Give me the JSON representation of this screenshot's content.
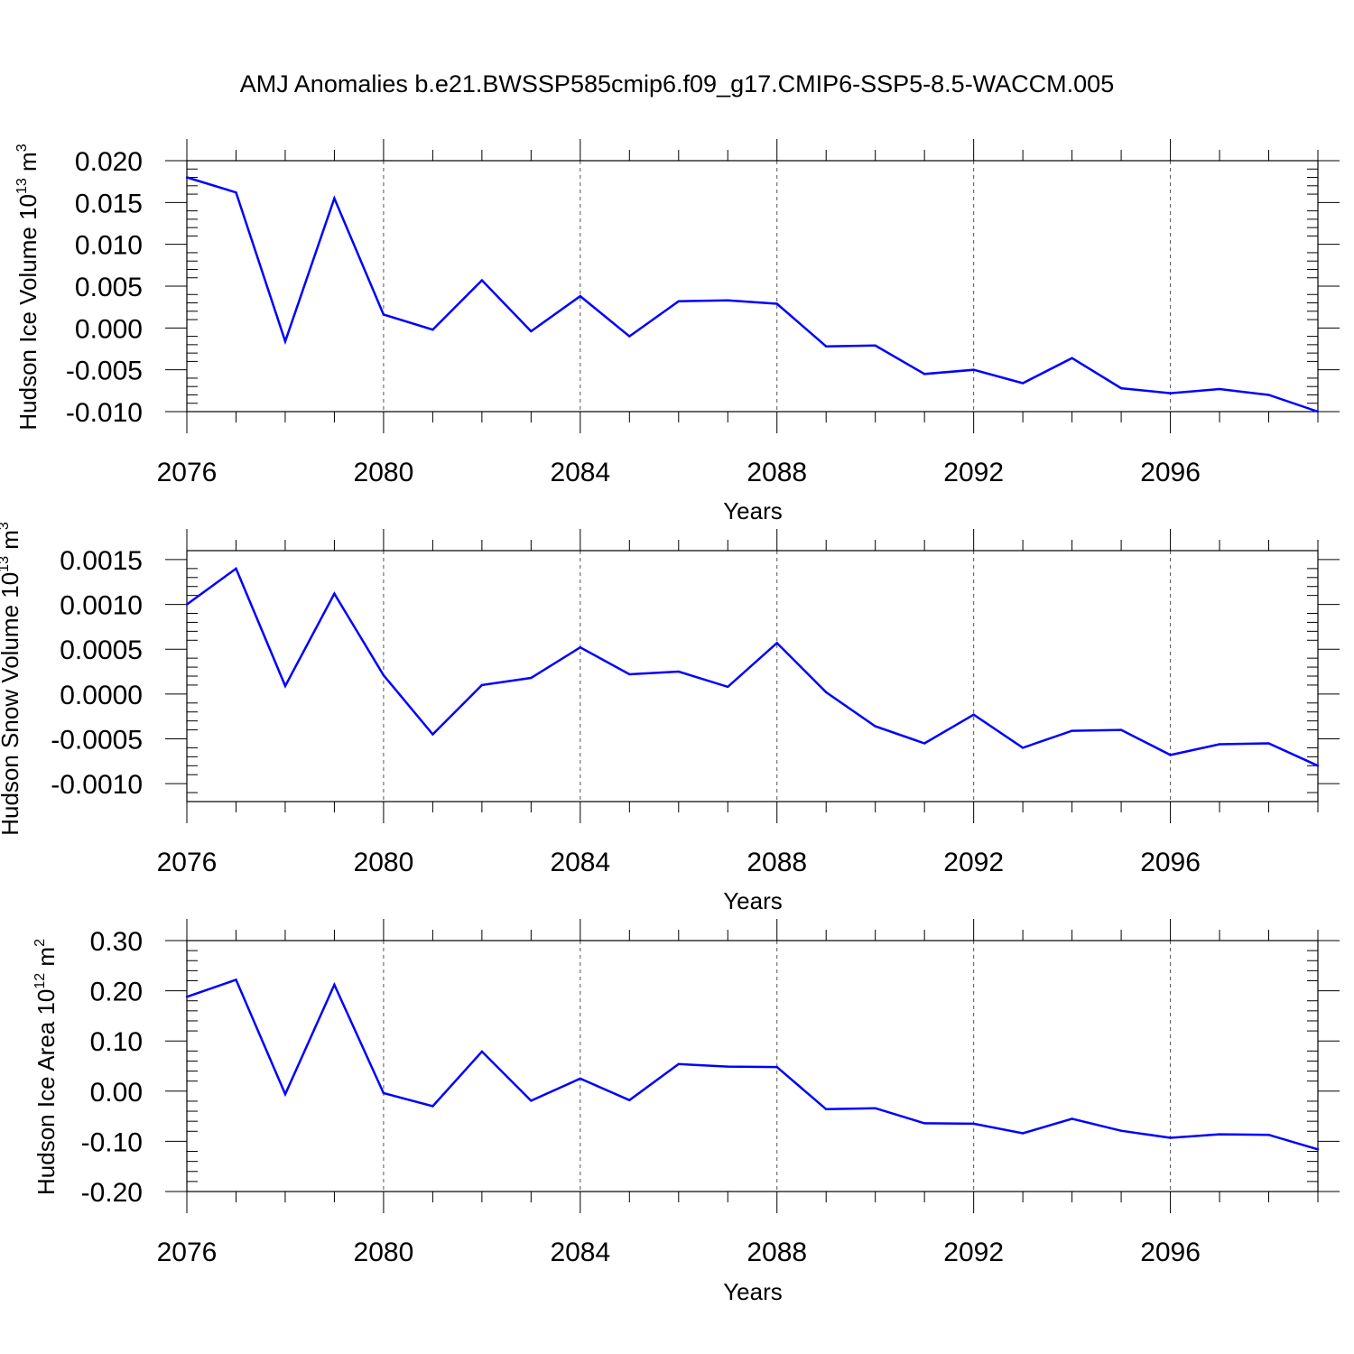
{
  "title": "AMJ Anomalies b.e21.BWSSP585cmip6.f09_g17.CMIP6-SSP5-8.5-WACCM.005",
  "colors": {
    "line": "#0000ff",
    "axis": "#000000",
    "grid": "#555555"
  },
  "chart_data": [
    {
      "type": "line",
      "title": "",
      "xlabel": "Years",
      "ylabel": "Hudson Ice Volume 10",
      "ylabel_exp": "13",
      "ylabel_unit": " m",
      "ylabel_unit_exp": "3",
      "xlim": [
        2076,
        2099
      ],
      "ylim": [
        -0.01,
        0.02
      ],
      "yticks": [
        "0.020",
        "0.015",
        "0.010",
        "0.005",
        "0.000",
        "-0.005",
        "-0.010"
      ],
      "ytick_values": [
        0.02,
        0.015,
        0.01,
        0.005,
        0.0,
        -0.005,
        -0.01
      ],
      "yminor_step": 0.001,
      "xticks": [
        "2076",
        "2080",
        "2084",
        "2088",
        "2092",
        "2096"
      ],
      "xtick_values": [
        2076,
        2080,
        2084,
        2088,
        2092,
        2096
      ],
      "xgrid": [
        2080,
        2084,
        2088,
        2092,
        2096
      ],
      "x": [
        2076,
        2077,
        2078,
        2079,
        2080,
        2081,
        2082,
        2083,
        2084,
        2085,
        2086,
        2087,
        2088,
        2089,
        2090,
        2091,
        2092,
        2093,
        2094,
        2095,
        2096,
        2097,
        2098,
        2099
      ],
      "values": [
        0.018,
        0.0162,
        -0.0016,
        0.0155,
        0.0016,
        -0.0002,
        0.0057,
        -0.0004,
        0.0038,
        -0.001,
        0.0032,
        0.0033,
        0.0029,
        -0.0022,
        -0.0021,
        -0.0055,
        -0.005,
        -0.0066,
        -0.0036,
        -0.0072,
        -0.0078,
        -0.0073,
        -0.008,
        -0.01
      ]
    },
    {
      "type": "line",
      "title": "",
      "xlabel": "Years",
      "ylabel": "Hudson Snow Volume 10",
      "ylabel_exp": "13",
      "ylabel_unit": " m",
      "ylabel_unit_exp": "3",
      "xlim": [
        2076,
        2099
      ],
      "ylim": [
        -0.0012,
        0.0016
      ],
      "yticks": [
        "0.0015",
        "0.0010",
        "0.0005",
        "0.0000",
        "-0.0005",
        "-0.0010"
      ],
      "ytick_values": [
        0.0015,
        0.001,
        0.0005,
        0.0,
        -0.0005,
        -0.001
      ],
      "yminor_step": 0.0001,
      "xticks": [
        "2076",
        "2080",
        "2084",
        "2088",
        "2092",
        "2096"
      ],
      "xtick_values": [
        2076,
        2080,
        2084,
        2088,
        2092,
        2096
      ],
      "xgrid": [
        2080,
        2084,
        2088,
        2092,
        2096
      ],
      "x": [
        2076,
        2077,
        2078,
        2079,
        2080,
        2081,
        2082,
        2083,
        2084,
        2085,
        2086,
        2087,
        2088,
        2089,
        2090,
        2091,
        2092,
        2093,
        2094,
        2095,
        2096,
        2097,
        2098,
        2099
      ],
      "values": [
        0.001,
        0.0014,
        9e-05,
        0.00112,
        0.00021,
        -0.00045,
        0.0001,
        0.00018,
        0.00052,
        0.00022,
        0.00025,
        8e-05,
        0.00057,
        2e-05,
        -0.00036,
        -0.00055,
        -0.00023,
        -0.0006,
        -0.00041,
        -0.0004,
        -0.00068,
        -0.00056,
        -0.00055,
        -0.0008
      ]
    },
    {
      "type": "line",
      "title": "",
      "xlabel": "Years",
      "ylabel": "Hudson Ice Area 10",
      "ylabel_exp": "12",
      "ylabel_unit": " m",
      "ylabel_unit_exp": "2",
      "xlim": [
        2076,
        2099
      ],
      "ylim": [
        -0.2,
        0.3
      ],
      "yticks": [
        "0.30",
        "0.20",
        "0.10",
        "0.00",
        "-0.10",
        "-0.20"
      ],
      "ytick_values": [
        0.3,
        0.2,
        0.1,
        0.0,
        -0.1,
        -0.2
      ],
      "yminor_step": 0.02,
      "xticks": [
        "2076",
        "2080",
        "2084",
        "2088",
        "2092",
        "2096"
      ],
      "xtick_values": [
        2076,
        2080,
        2084,
        2088,
        2092,
        2096
      ],
      "xgrid": [
        2080,
        2084,
        2088,
        2092,
        2096
      ],
      "x": [
        2076,
        2077,
        2078,
        2079,
        2080,
        2081,
        2082,
        2083,
        2084,
        2085,
        2086,
        2087,
        2088,
        2089,
        2090,
        2091,
        2092,
        2093,
        2094,
        2095,
        2096,
        2097,
        2098,
        2099
      ],
      "values": [
        0.188,
        0.222,
        -0.006,
        0.212,
        -0.004,
        -0.03,
        0.079,
        -0.019,
        0.025,
        -0.018,
        0.054,
        0.049,
        0.048,
        -0.036,
        -0.034,
        -0.064,
        -0.065,
        -0.084,
        -0.055,
        -0.079,
        -0.093,
        -0.086,
        -0.087,
        -0.116
      ]
    }
  ]
}
